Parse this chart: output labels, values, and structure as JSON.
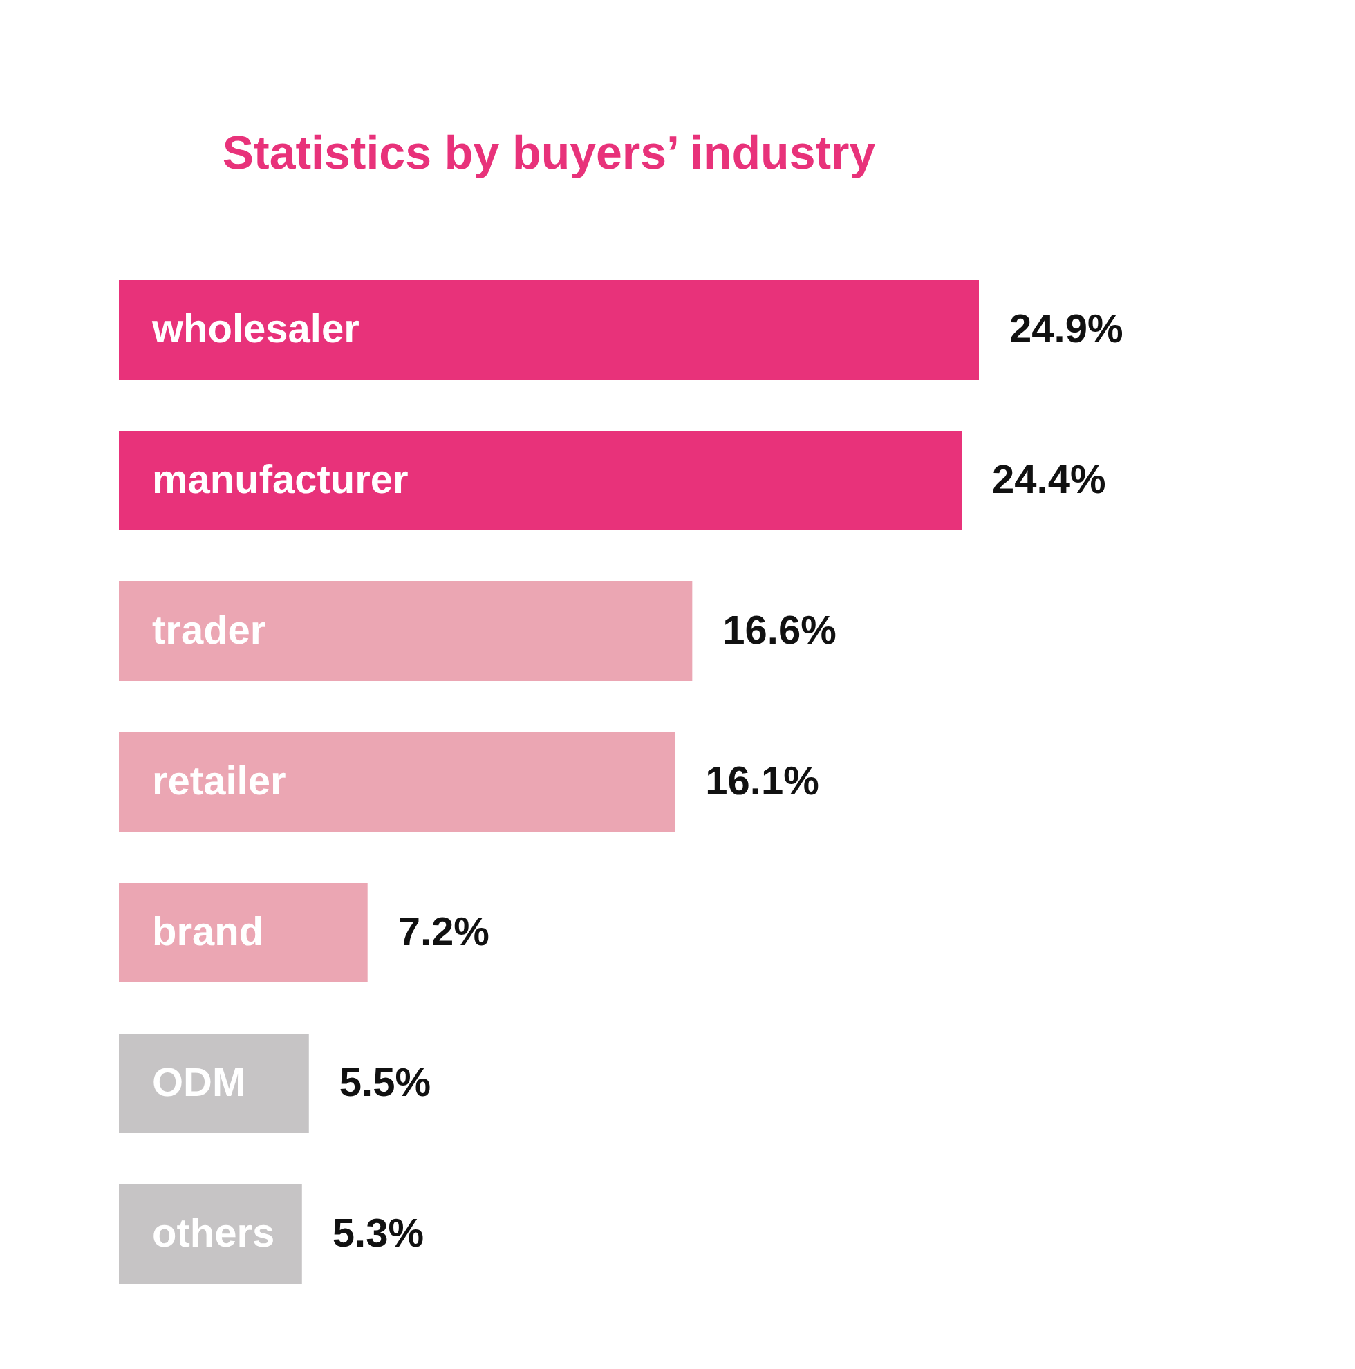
{
  "chart_data": {
    "type": "bar",
    "orientation": "horizontal",
    "title": "Statistics by buyers’ industry",
    "categories": [
      "wholesaler",
      "manufacturer",
      "trader",
      "retailer",
      "brand",
      "ODM",
      "others"
    ],
    "values": [
      24.9,
      24.4,
      16.6,
      16.1,
      7.2,
      5.5,
      5.3
    ],
    "colors": [
      "#e8327a",
      "#e8327a",
      "#eba6b3",
      "#eba6b3",
      "#eba6b3",
      "#c6c4c5",
      "#c6c4c5"
    ],
    "value_labels": [
      "24.9%",
      "24.4%",
      "16.6%",
      "16.1%",
      "7.2%",
      "5.5%",
      "5.3%"
    ]
  }
}
